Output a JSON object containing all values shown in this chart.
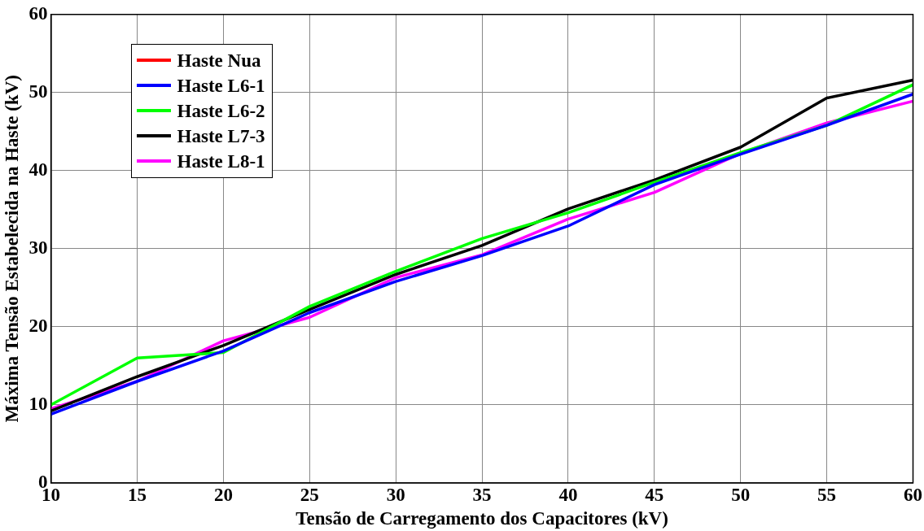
{
  "chart_data": {
    "type": "line",
    "xlabel": "Tensão de Carregamento dos Capacitores (kV)",
    "ylabel": "Máxima Tensão Estabelecida na Haste (kV)",
    "x": [
      10,
      15,
      20,
      25,
      30,
      35,
      40,
      45,
      50,
      55,
      60
    ],
    "series": [
      {
        "name": "Haste Nua",
        "color": "#ff0000",
        "values": [
          null,
          null,
          null,
          null,
          null,
          null,
          null,
          null,
          null,
          null,
          null
        ]
      },
      {
        "name": "Haste L6-1",
        "color": "#0000ff",
        "values": [
          8.8,
          13,
          16.9,
          21.8,
          25.8,
          29.1,
          32.9,
          38.2,
          42.1,
          45.8,
          49.8
        ]
      },
      {
        "name": "Haste L6-2",
        "color": "#00ff00",
        "values": [
          10,
          16,
          16.7,
          22.6,
          27.1,
          31.3,
          34.6,
          38.5,
          42.3,
          45.8,
          51
        ]
      },
      {
        "name": "Haste L7-3",
        "color": "#000000",
        "values": [
          9.2,
          13.6,
          17.6,
          22.2,
          26.7,
          30.4,
          35.1,
          38.8,
          43,
          49.3,
          51.6
        ]
      },
      {
        "name": "Haste L8-1",
        "color": "#ff00ff",
        "values": [
          9.5,
          13,
          18.2,
          21.2,
          26.3,
          29.2,
          33.8,
          37.2,
          42.2,
          46.1,
          48.9
        ]
      }
    ],
    "xlim": [
      10,
      60
    ],
    "xticks": [
      10,
      15,
      20,
      25,
      30,
      35,
      40,
      45,
      50,
      55,
      60
    ],
    "ylim": [
      0,
      60
    ],
    "yticks": [
      0,
      10,
      20,
      30,
      40,
      50,
      60
    ],
    "grid": true,
    "legend": "top left",
    "line_style": "solid",
    "marker": "none"
  }
}
